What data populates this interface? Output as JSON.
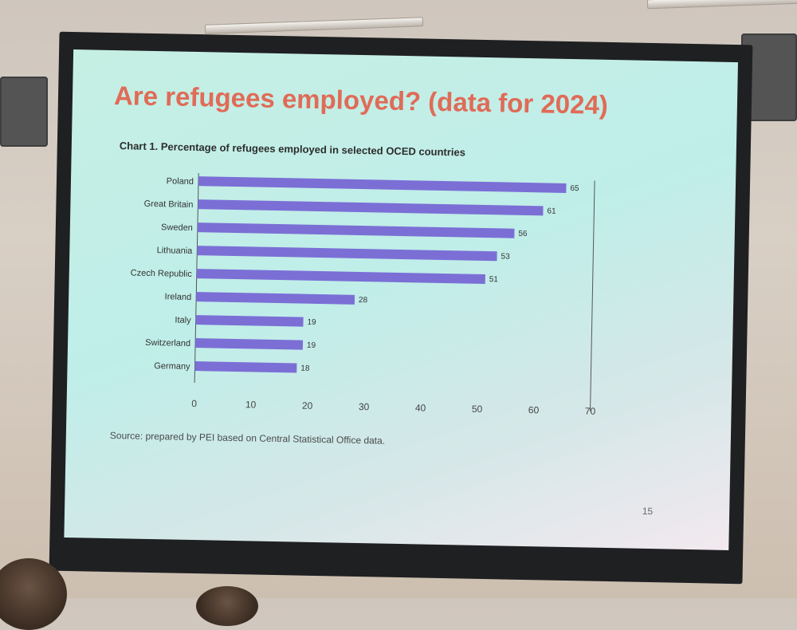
{
  "slide": {
    "title": "Are refugees employed? (data for 2024)",
    "caption": "Chart 1.  Percentage of refugees employed in selected OCED countries",
    "source": "Source: prepared by PEI based on Central Statistical Office data.",
    "page_number": "15"
  },
  "colors": {
    "title": "#e06b57",
    "bar": "#7b6fd6"
  },
  "chart_data": {
    "type": "bar",
    "orientation": "horizontal",
    "categories": [
      "Poland",
      "Great Britain",
      "Sweden",
      "Lithuania",
      "Czech Republic",
      "Ireland",
      "Italy",
      "Switzerland",
      "Germany"
    ],
    "values": [
      65,
      61,
      56,
      53,
      51,
      28,
      19,
      19,
      18
    ],
    "xticks": [
      0,
      10,
      20,
      30,
      40,
      50,
      60,
      70
    ],
    "xlim": [
      0,
      70
    ],
    "grid": false,
    "data_labels": true
  }
}
